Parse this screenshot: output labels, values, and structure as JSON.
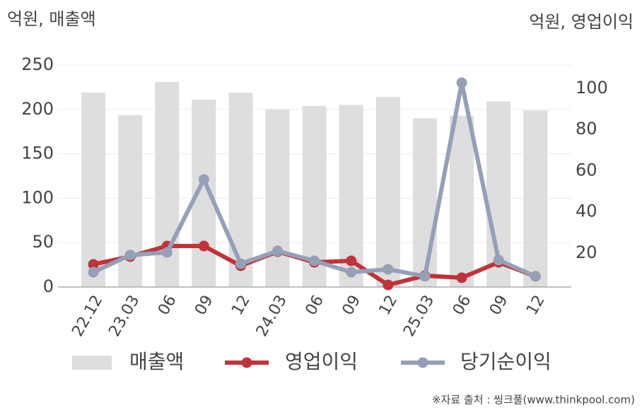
{
  "chart_data": {
    "type": "combo",
    "y_label": "억원, 매출액",
    "y2_label": "억원, 영업이익",
    "source": "※자료 출처 : 씽크풀(www.thinkpool.com)",
    "categories": [
      "22.12",
      "23.03",
      "06",
      "09",
      "12",
      "24.03",
      "06",
      "09",
      "12",
      "25.03",
      "06",
      "09",
      "12"
    ],
    "series": [
      {
        "name": "매출액",
        "type": "bar",
        "color": "#dedede",
        "values": [
          219,
          193.5,
          231,
          211,
          219,
          200,
          204,
          205,
          214,
          190,
          193,
          209,
          199
        ]
      },
      {
        "name": "영업이익",
        "type": "line",
        "axis": "y2",
        "color": "#c0333a",
        "values": [
          14.5,
          18.3,
          23.4,
          23.4,
          13.8,
          20.7,
          15.5,
          16.2,
          4.5,
          9,
          8,
          15.5,
          8.7
        ]
      },
      {
        "name": "당기순이익",
        "type": "line",
        "axis": "y2",
        "color": "#95a0b8",
        "values": [
          10.7,
          19,
          20.3,
          55.7,
          14.8,
          21,
          16.2,
          10.7,
          12.1,
          8.7,
          102.7,
          16.6,
          8.7
        ]
      }
    ],
    "ylim": [
      0,
      250
    ],
    "yticks": [
      0,
      50,
      100,
      150,
      200,
      250
    ],
    "y2lim": [
      3.5,
      111.3
    ],
    "y2ticks": [
      20,
      40,
      60,
      80,
      100
    ],
    "grid": true
  }
}
